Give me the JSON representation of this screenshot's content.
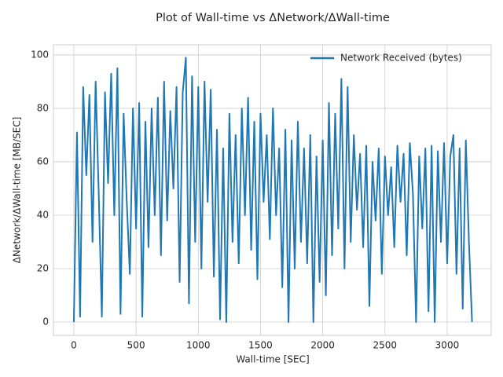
{
  "chart_data": {
    "type": "line",
    "title": "Plot of Wall-time vs ΔNetwork/ΔWall-time",
    "x_label": "Wall-time [SEC]",
    "y_label": "ΔNetwork/ΔWall-time [MB/SEC]",
    "x": [
      0,
      25,
      50,
      75,
      100,
      125,
      150,
      175,
      200,
      225,
      250,
      275,
      300,
      325,
      350,
      375,
      400,
      425,
      450,
      475,
      500,
      525,
      550,
      575,
      600,
      625,
      650,
      675,
      700,
      725,
      750,
      775,
      800,
      825,
      850,
      875,
      900,
      925,
      950,
      975,
      1000,
      1025,
      1050,
      1075,
      1100,
      1125,
      1150,
      1175,
      1200,
      1225,
      1250,
      1275,
      1300,
      1325,
      1350,
      1375,
      1400,
      1425,
      1450,
      1475,
      1500,
      1525,
      1550,
      1575,
      1600,
      1625,
      1650,
      1675,
      1700,
      1725,
      1750,
      1775,
      1800,
      1825,
      1850,
      1875,
      1900,
      1925,
      1950,
      1975,
      2000,
      2025,
      2050,
      2075,
      2100,
      2125,
      2150,
      2175,
      2200,
      2225,
      2250,
      2275,
      2300,
      2325,
      2350,
      2375,
      2400,
      2425,
      2450,
      2475,
      2500,
      2525,
      2550,
      2575,
      2600,
      2625,
      2650,
      2675,
      2700,
      2725,
      2750,
      2775,
      2800,
      2825,
      2850,
      2875,
      2900,
      2925,
      2950,
      2975,
      3000,
      3025,
      3050,
      3075,
      3100,
      3125,
      3150,
      3175,
      3200
    ],
    "series": [
      {
        "name": "Network Received (bytes)",
        "color": "#1f77b4",
        "values": [
          0,
          71,
          2,
          88,
          55,
          85,
          30,
          90,
          48,
          2,
          86,
          52,
          93,
          40,
          95,
          3,
          78,
          45,
          18,
          80,
          35,
          82,
          2,
          75,
          28,
          80,
          40,
          84,
          25,
          90,
          38,
          79,
          50,
          88,
          15,
          86,
          99,
          7,
          92,
          30,
          88,
          20,
          90,
          45,
          87,
          17,
          72,
          1,
          65,
          0,
          78,
          30,
          70,
          22,
          80,
          40,
          84,
          27,
          75,
          16,
          78,
          45,
          70,
          31,
          80,
          40,
          65,
          13,
          72,
          0,
          68,
          20,
          75,
          30,
          65,
          22,
          70,
          0,
          62,
          15,
          68,
          10,
          82,
          25,
          78,
          35,
          91,
          20,
          88,
          30,
          70,
          42,
          63,
          28,
          66,
          6,
          60,
          38,
          65,
          18,
          62,
          40,
          58,
          28,
          66,
          45,
          63,
          25,
          67,
          48,
          0,
          62,
          35,
          65,
          4,
          66,
          0,
          64,
          30,
          67,
          22,
          62,
          70,
          18,
          65,
          5,
          68,
          30,
          0
        ]
      }
    ],
    "xlim": [
      -164,
      3354
    ],
    "ylim": [
      -5,
      103.8
    ],
    "xticks": [
      0,
      500,
      1000,
      1500,
      2000,
      2500,
      3000
    ],
    "yticks": [
      0,
      20,
      40,
      60,
      80,
      100
    ],
    "grid": true,
    "legend": "upper right"
  }
}
